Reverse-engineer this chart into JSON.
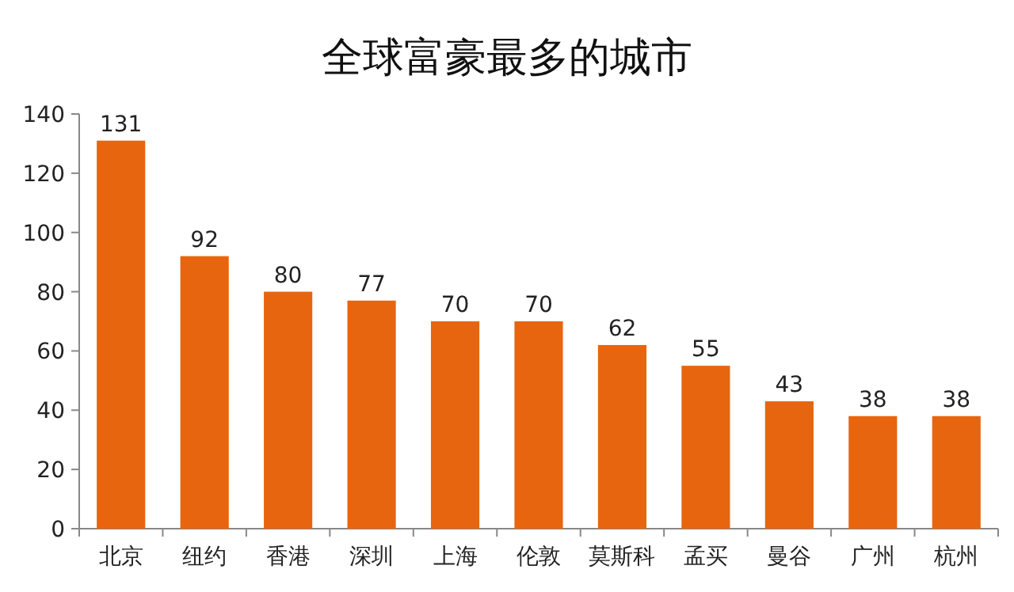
{
  "chart_data": {
    "type": "bar",
    "title": "全球富豪最多的城市",
    "categories": [
      "北京",
      "纽约",
      "香港",
      "深圳",
      "上海",
      "伦敦",
      "莫斯科",
      "孟买",
      "曼谷",
      "广州",
      "杭州"
    ],
    "values": [
      131,
      92,
      80,
      77,
      70,
      70,
      62,
      55,
      43,
      38,
      38
    ],
    "color": "#e8650f",
    "data_labels": true,
    "ylim": [
      0,
      140
    ],
    "yticks": [
      0,
      20,
      40,
      60,
      80,
      100,
      120,
      140
    ]
  }
}
